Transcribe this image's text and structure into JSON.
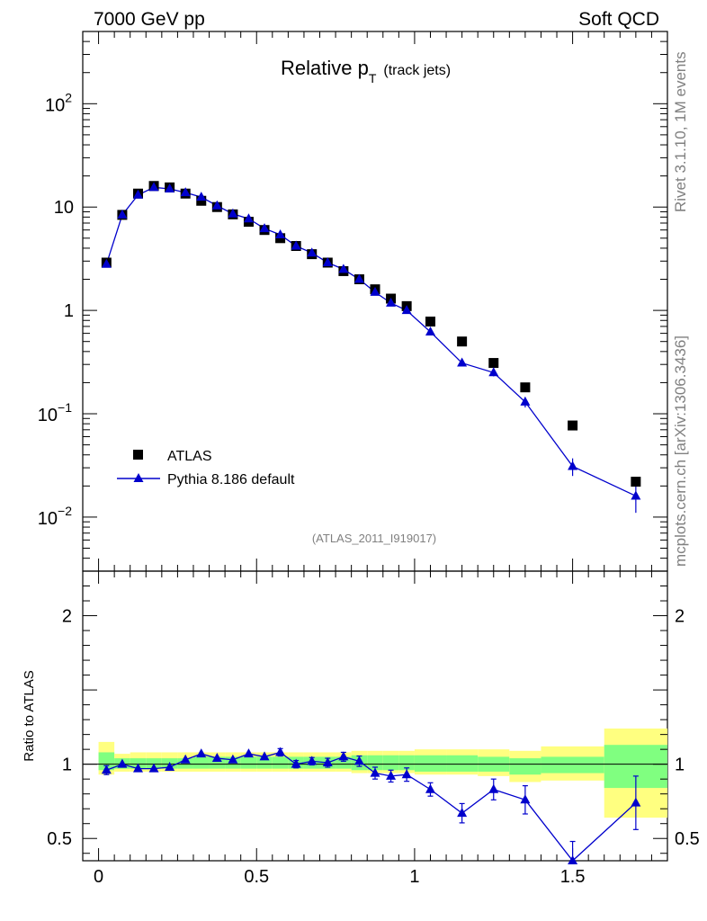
{
  "header": {
    "left": "7000 GeV pp",
    "right": "Soft QCD"
  },
  "side_labels": {
    "rivet": "Rivet 3.1.10,  1M events",
    "mcplots": "mcplots.cern.ch [arXiv:1306.3436]"
  },
  "chart_data": [
    {
      "type": "scatter",
      "scale": "log",
      "title_main": "Relative p",
      "title_sub": "T",
      "title_suffix": "(track jets)",
      "analysis_id": "(ATLAS_2011_I919017)",
      "xlim": [
        -0.05,
        1.8
      ],
      "ylim": [
        0.003,
        500
      ],
      "y_ticks": [
        {
          "value": 100,
          "base": "10",
          "exp": "2"
        },
        {
          "value": 10,
          "base": "10",
          "exp": ""
        },
        {
          "value": 1,
          "base": "1",
          "exp": ""
        },
        {
          "value": 0.1,
          "base": "10",
          "exp": "−1"
        },
        {
          "value": 0.01,
          "base": "10",
          "exp": "−2"
        }
      ],
      "legend": [
        {
          "label": "ATLAS",
          "marker": "square",
          "color": "#000000"
        },
        {
          "label": "Pythia 8.186 default",
          "marker": "triangle",
          "color": "#0000cc"
        }
      ],
      "series": [
        {
          "name": "ATLAS",
          "color": "#000000",
          "x": [
            0.025,
            0.075,
            0.125,
            0.175,
            0.225,
            0.275,
            0.325,
            0.375,
            0.425,
            0.475,
            0.525,
            0.575,
            0.625,
            0.675,
            0.725,
            0.775,
            0.825,
            0.875,
            0.925,
            0.975,
            1.05,
            1.15,
            1.25,
            1.35,
            1.5,
            1.7
          ],
          "y": [
            2.9,
            8.4,
            13.5,
            16.0,
            15.5,
            13.5,
            11.5,
            10.0,
            8.5,
            7.2,
            6.0,
            5.0,
            4.2,
            3.5,
            2.9,
            2.4,
            2.0,
            1.6,
            1.3,
            1.1,
            0.78,
            0.5,
            0.31,
            0.18,
            0.077,
            0.022
          ]
        },
        {
          "name": "Pythia 8.186 default",
          "color": "#0000cc",
          "x": [
            0.025,
            0.075,
            0.125,
            0.175,
            0.225,
            0.275,
            0.325,
            0.375,
            0.425,
            0.475,
            0.525,
            0.575,
            0.625,
            0.675,
            0.725,
            0.775,
            0.825,
            0.875,
            0.925,
            0.975,
            1.05,
            1.15,
            1.25,
            1.35,
            1.5,
            1.7
          ],
          "y": [
            2.8,
            8.4,
            13.1,
            15.5,
            15.0,
            13.8,
            12.5,
            10.3,
            8.6,
            7.7,
            6.2,
            5.4,
            4.2,
            3.6,
            2.9,
            2.5,
            2.0,
            1.5,
            1.18,
            1.0,
            0.62,
            0.31,
            0.25,
            0.13,
            0.031,
            0.016
          ],
          "y_err": [
            0.05,
            0.1,
            0.1,
            0.1,
            0.1,
            0.1,
            0.1,
            0.1,
            0.08,
            0.08,
            0.06,
            0.06,
            0.05,
            0.04,
            0.04,
            0.04,
            0.04,
            0.03,
            0.03,
            0.03,
            0.02,
            0.015,
            0.02,
            0.015,
            0.006,
            0.005
          ]
        }
      ]
    },
    {
      "type": "scatter",
      "ylabel": "Ratio to ATLAS",
      "xlim": [
        -0.05,
        1.8
      ],
      "ylim": [
        0.35,
        2.3
      ],
      "x_ticks": [
        {
          "value": 0,
          "label": "0"
        },
        {
          "value": 0.5,
          "label": "0.5"
        },
        {
          "value": 1,
          "label": "1"
        },
        {
          "value": 1.5,
          "label": "1.5"
        }
      ],
      "y_ticks": [
        {
          "value": 0.5,
          "label": "0.5"
        },
        {
          "value": 1,
          "label": "1"
        },
        {
          "value": 2,
          "label": "2"
        }
      ],
      "bands": {
        "bins": [
          [
            0.0,
            0.05
          ],
          [
            0.05,
            0.1
          ],
          [
            0.1,
            0.15
          ],
          [
            0.15,
            0.2
          ],
          [
            0.2,
            0.25
          ],
          [
            0.25,
            0.3
          ],
          [
            0.3,
            0.35
          ],
          [
            0.35,
            0.4
          ],
          [
            0.4,
            0.45
          ],
          [
            0.45,
            0.5
          ],
          [
            0.5,
            0.55
          ],
          [
            0.55,
            0.6
          ],
          [
            0.6,
            0.65
          ],
          [
            0.65,
            0.7
          ],
          [
            0.7,
            0.75
          ],
          [
            0.75,
            0.8
          ],
          [
            0.8,
            0.85
          ],
          [
            0.85,
            0.9
          ],
          [
            0.9,
            0.95
          ],
          [
            0.95,
            1.0
          ],
          [
            1.0,
            1.1
          ],
          [
            1.1,
            1.2
          ],
          [
            1.2,
            1.3
          ],
          [
            1.3,
            1.4
          ],
          [
            1.4,
            1.6
          ],
          [
            1.6,
            1.8
          ]
        ],
        "yellow": [
          [
            0.93,
            1.15
          ],
          [
            0.95,
            1.07
          ],
          [
            0.95,
            1.08
          ],
          [
            0.95,
            1.08
          ],
          [
            0.95,
            1.08
          ],
          [
            0.95,
            1.08
          ],
          [
            0.95,
            1.08
          ],
          [
            0.95,
            1.08
          ],
          [
            0.95,
            1.08
          ],
          [
            0.95,
            1.08
          ],
          [
            0.95,
            1.08
          ],
          [
            0.95,
            1.08
          ],
          [
            0.95,
            1.08
          ],
          [
            0.95,
            1.08
          ],
          [
            0.95,
            1.08
          ],
          [
            0.95,
            1.08
          ],
          [
            0.94,
            1.09
          ],
          [
            0.94,
            1.09
          ],
          [
            0.94,
            1.09
          ],
          [
            0.94,
            1.09
          ],
          [
            0.93,
            1.1
          ],
          [
            0.93,
            1.1
          ],
          [
            0.92,
            1.1
          ],
          [
            0.88,
            1.09
          ],
          [
            0.89,
            1.12
          ],
          [
            0.64,
            1.24
          ]
        ],
        "green": [
          [
            0.96,
            1.08
          ],
          [
            0.97,
            1.04
          ],
          [
            0.97,
            1.04
          ],
          [
            0.97,
            1.04
          ],
          [
            0.97,
            1.04
          ],
          [
            0.97,
            1.04
          ],
          [
            0.97,
            1.05
          ],
          [
            0.97,
            1.05
          ],
          [
            0.97,
            1.05
          ],
          [
            0.97,
            1.05
          ],
          [
            0.97,
            1.05
          ],
          [
            0.97,
            1.05
          ],
          [
            0.97,
            1.05
          ],
          [
            0.97,
            1.05
          ],
          [
            0.97,
            1.05
          ],
          [
            0.97,
            1.05
          ],
          [
            0.96,
            1.06
          ],
          [
            0.96,
            1.06
          ],
          [
            0.96,
            1.06
          ],
          [
            0.96,
            1.06
          ],
          [
            0.95,
            1.06
          ],
          [
            0.95,
            1.06
          ],
          [
            0.95,
            1.05
          ],
          [
            0.93,
            1.04
          ],
          [
            0.94,
            1.05
          ],
          [
            0.84,
            1.13
          ]
        ]
      },
      "series": [
        {
          "name": "Pythia 8.186 default",
          "color": "#0000cc",
          "x": [
            0.025,
            0.075,
            0.125,
            0.175,
            0.225,
            0.275,
            0.325,
            0.375,
            0.425,
            0.475,
            0.525,
            0.575,
            0.625,
            0.675,
            0.725,
            0.775,
            0.825,
            0.875,
            0.925,
            0.975,
            1.05,
            1.15,
            1.25,
            1.35,
            1.5,
            1.7
          ],
          "y": [
            0.96,
            1.0,
            0.97,
            0.97,
            0.98,
            1.03,
            1.07,
            1.04,
            1.03,
            1.07,
            1.05,
            1.08,
            1.0,
            1.02,
            1.01,
            1.05,
            1.02,
            0.94,
            0.92,
            0.93,
            0.83,
            0.67,
            0.83,
            0.76,
            0.35,
            0.74
          ],
          "y_err": [
            0.03,
            0.015,
            0.015,
            0.01,
            0.01,
            0.01,
            0.015,
            0.02,
            0.02,
            0.02,
            0.02,
            0.025,
            0.025,
            0.025,
            0.03,
            0.03,
            0.035,
            0.04,
            0.04,
            0.045,
            0.045,
            0.065,
            0.07,
            0.095,
            0.13,
            0.18
          ]
        }
      ]
    }
  ]
}
